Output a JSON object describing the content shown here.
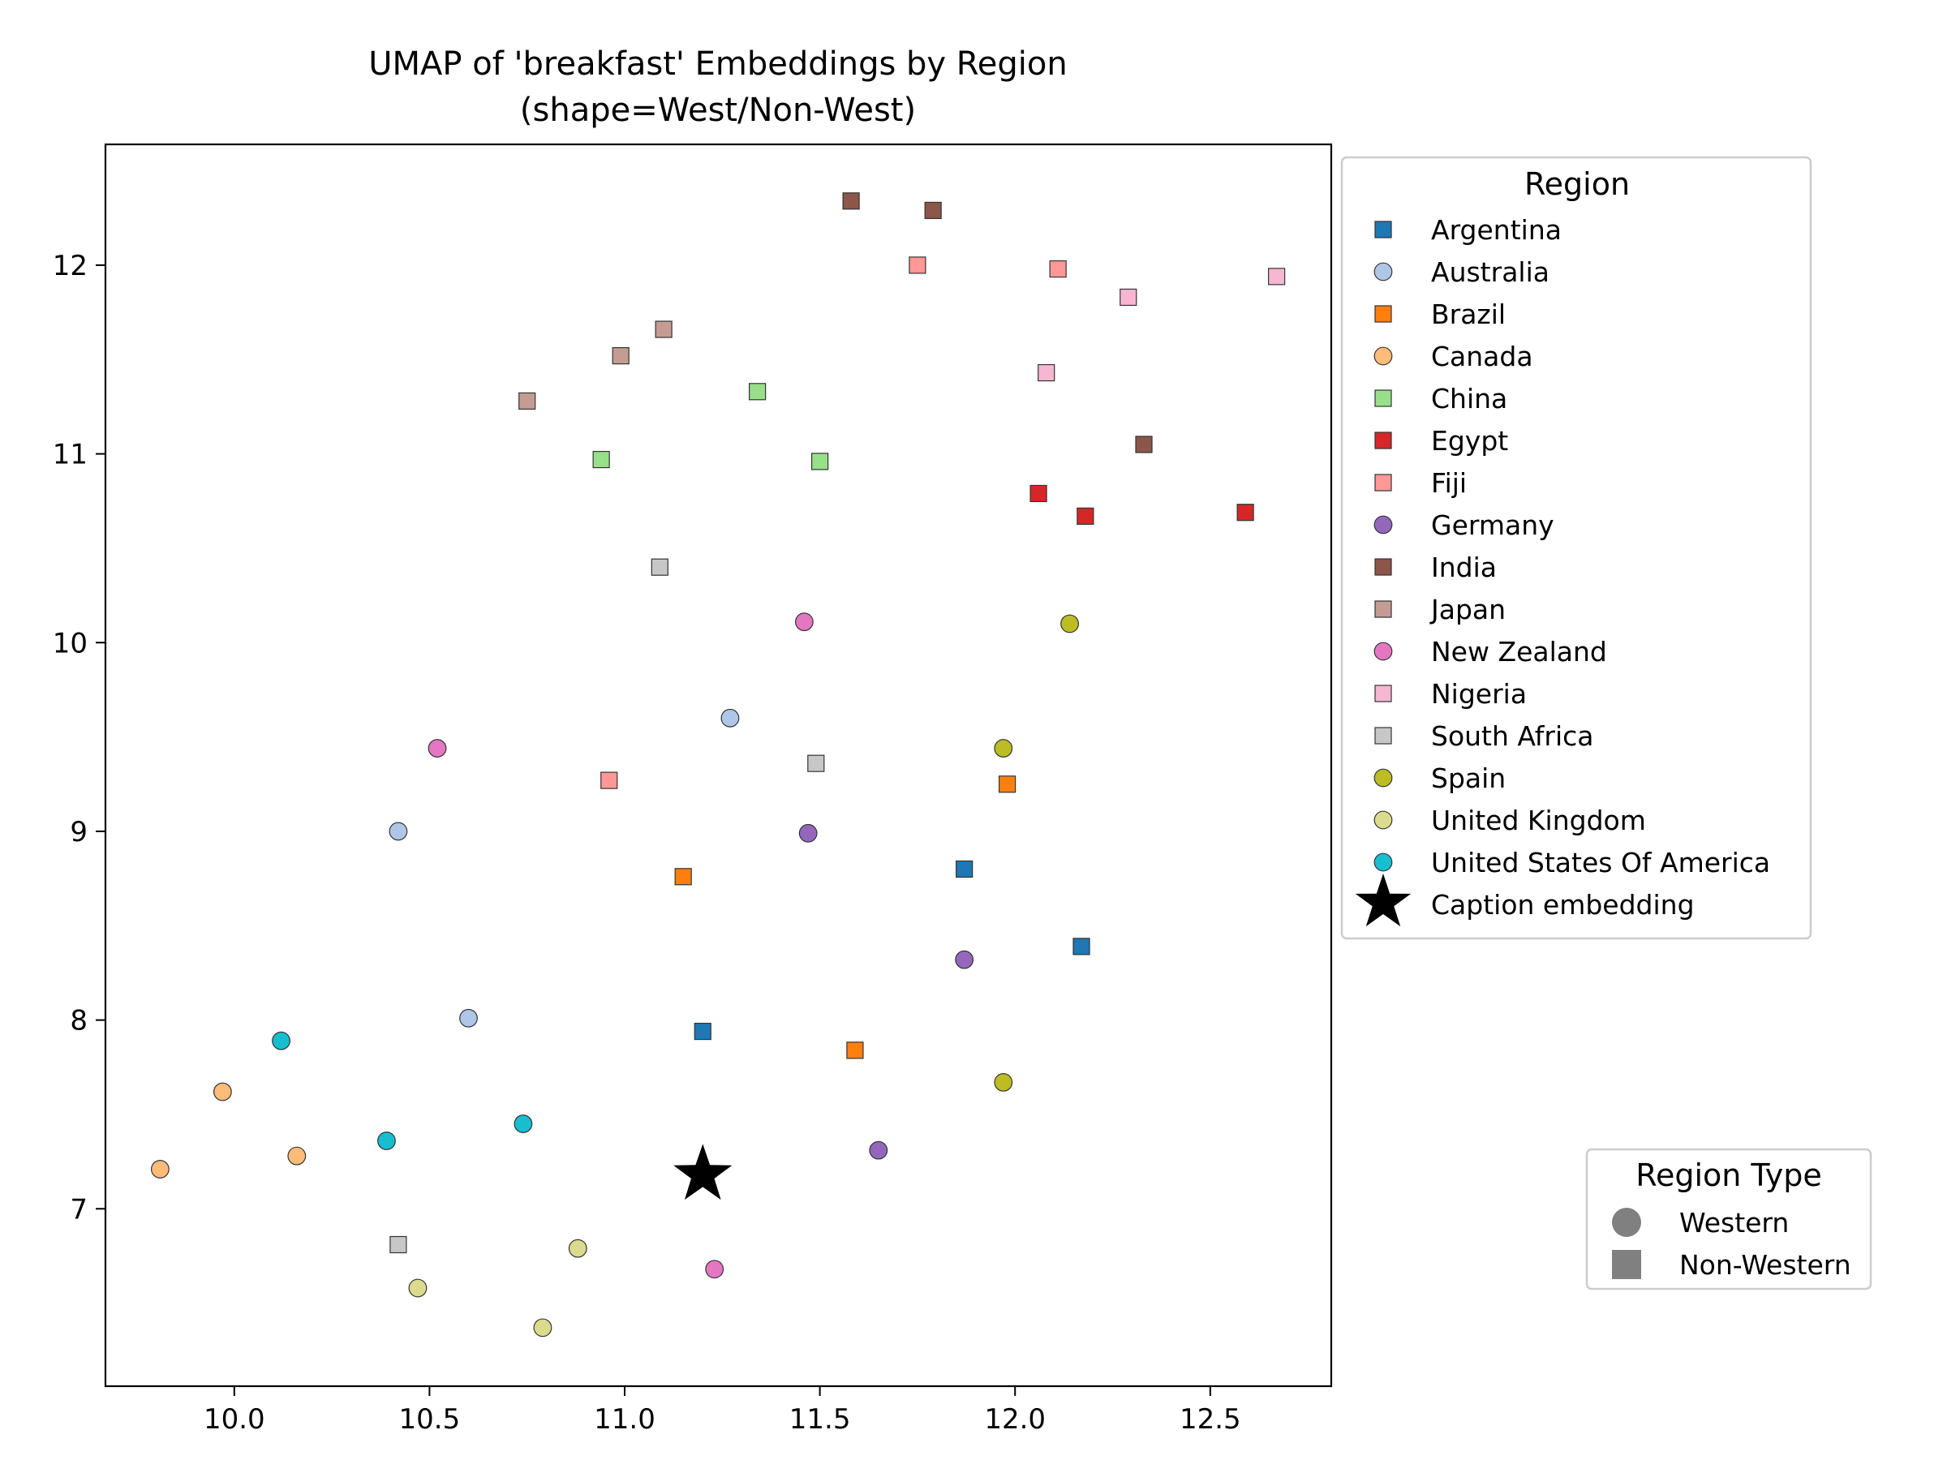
{
  "chart_data": {
    "type": "scatter",
    "title": "UMAP of 'breakfast' Embeddings by Region\n(shape=West/Non-West)",
    "xlabel": "",
    "ylabel": "",
    "xlim": [
      9.67,
      12.81
    ],
    "ylim": [
      6.06,
      12.64
    ],
    "x_ticks": [
      10.0,
      10.5,
      11.0,
      11.5,
      12.0,
      12.5
    ],
    "x_tick_labels": [
      "10.0",
      "10.5",
      "11.0",
      "11.5",
      "12.0",
      "12.5"
    ],
    "y_ticks": [
      7,
      8,
      9,
      10,
      11,
      12
    ],
    "y_tick_labels": [
      "7",
      "8",
      "9",
      "10",
      "11",
      "12"
    ],
    "grid": false,
    "legend": {
      "title": "Region",
      "placement": "outside-right-top",
      "caption_label": "Caption embedding"
    },
    "shape_legend": {
      "title": "Region Type",
      "placement": "outside-right-bottom",
      "items": [
        {
          "label": "Western",
          "marker": "circle"
        },
        {
          "label": "Non-Western",
          "marker": "square"
        }
      ]
    },
    "series": [
      {
        "name": "Argentina",
        "color": "#1f77b4",
        "marker": "square",
        "points": [
          [
            11.87,
            8.8
          ],
          [
            12.17,
            8.39
          ],
          [
            11.2,
            7.94
          ]
        ]
      },
      {
        "name": "Australia",
        "color": "#aec7e8",
        "marker": "circle",
        "points": [
          [
            11.27,
            9.6
          ],
          [
            10.42,
            9.0
          ],
          [
            10.6,
            8.01
          ]
        ]
      },
      {
        "name": "Brazil",
        "color": "#ff7f0e",
        "marker": "square",
        "points": [
          [
            11.98,
            9.25
          ],
          [
            11.15,
            8.76
          ],
          [
            11.59,
            7.84
          ]
        ]
      },
      {
        "name": "Canada",
        "color": "#ffbb78",
        "marker": "circle",
        "points": [
          [
            9.97,
            7.62
          ],
          [
            10.16,
            7.28
          ],
          [
            9.81,
            7.21
          ]
        ]
      },
      {
        "name": "China",
        "color": "#98df8a",
        "marker": "square",
        "points": [
          [
            11.34,
            11.33
          ],
          [
            10.94,
            10.97
          ],
          [
            11.5,
            10.96
          ]
        ]
      },
      {
        "name": "Egypt",
        "color": "#d62728",
        "marker": "square",
        "points": [
          [
            12.06,
            10.79
          ],
          [
            12.18,
            10.67
          ],
          [
            12.59,
            10.69
          ]
        ]
      },
      {
        "name": "Fiji",
        "color": "#ff9896",
        "marker": "square",
        "points": [
          [
            11.75,
            12.0
          ],
          [
            12.11,
            11.98
          ],
          [
            10.96,
            9.27
          ]
        ]
      },
      {
        "name": "Germany",
        "color": "#9467bd",
        "marker": "circle",
        "points": [
          [
            11.47,
            8.99
          ],
          [
            11.87,
            8.32
          ],
          [
            11.65,
            7.31
          ]
        ]
      },
      {
        "name": "India",
        "color": "#8c564b",
        "marker": "square",
        "points": [
          [
            11.58,
            12.34
          ],
          [
            11.79,
            12.29
          ],
          [
            12.33,
            11.05
          ]
        ]
      },
      {
        "name": "Japan",
        "color": "#c49c94",
        "marker": "square",
        "points": [
          [
            11.1,
            11.66
          ],
          [
            10.99,
            11.52
          ],
          [
            10.75,
            11.28
          ]
        ]
      },
      {
        "name": "New Zealand",
        "color": "#e377c2",
        "marker": "circle",
        "points": [
          [
            11.46,
            10.11
          ],
          [
            10.52,
            9.44
          ],
          [
            11.23,
            6.68
          ]
        ]
      },
      {
        "name": "Nigeria",
        "color": "#f7b6d2",
        "marker": "square",
        "points": [
          [
            12.29,
            11.83
          ],
          [
            12.67,
            11.94
          ],
          [
            12.08,
            11.43
          ]
        ]
      },
      {
        "name": "South Africa",
        "color": "#c7c7c7",
        "marker": "square",
        "points": [
          [
            11.09,
            10.4
          ],
          [
            11.49,
            9.36
          ],
          [
            10.42,
            6.81
          ]
        ]
      },
      {
        "name": "Spain",
        "color": "#bcbd22",
        "marker": "circle",
        "points": [
          [
            12.14,
            10.1
          ],
          [
            11.97,
            9.44
          ],
          [
            11.97,
            7.67
          ]
        ]
      },
      {
        "name": "United Kingdom",
        "color": "#dbdb8d",
        "marker": "circle",
        "points": [
          [
            10.88,
            6.79
          ],
          [
            10.47,
            6.58
          ],
          [
            10.79,
            6.37
          ]
        ]
      },
      {
        "name": "United States Of America",
        "color": "#17becf",
        "marker": "circle",
        "points": [
          [
            10.12,
            7.89
          ],
          [
            10.39,
            7.36
          ],
          [
            10.74,
            7.45
          ]
        ]
      }
    ],
    "caption_point": {
      "label": "Caption embedding",
      "x": 11.2,
      "y": 7.18,
      "marker": "star",
      "color": "#000000"
    }
  }
}
